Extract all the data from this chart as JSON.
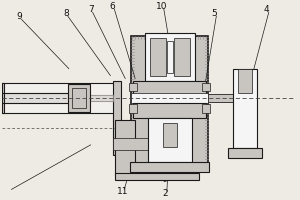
{
  "bg_color": "#eeebe4",
  "line_color": "#1a1a1a",
  "fill_gray": "#c8c4c0",
  "fill_white": "#f5f5f5",
  "hatch_color": "#aaaaaa",
  "dashed_color": "#444444",
  "label_color": "#111111",
  "lw_main": 0.8,
  "lw_thin": 0.5,
  "fs": 6.5
}
